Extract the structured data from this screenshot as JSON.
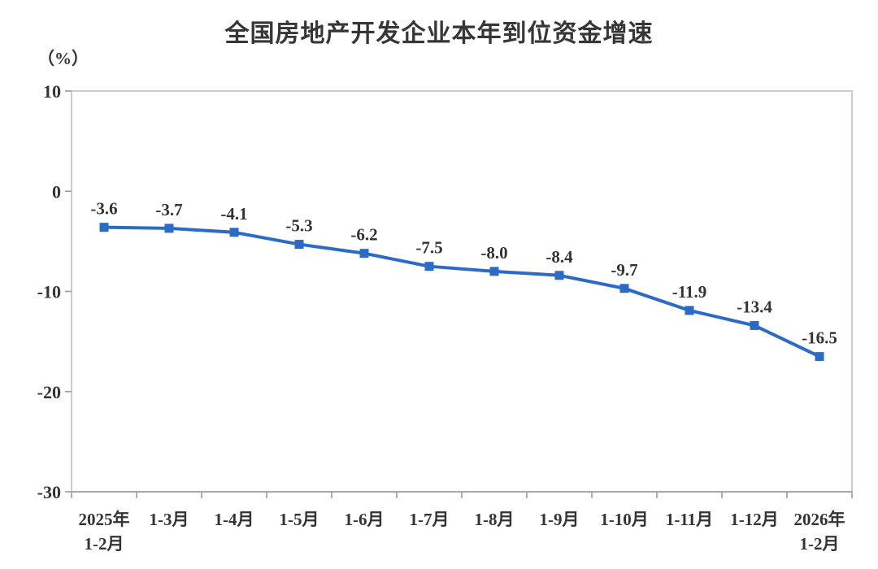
{
  "chart_data": {
    "type": "line",
    "title": "全国房地产开发企业本年到位资金增速",
    "unit_label": "（%）",
    "categories": [
      [
        "2025年",
        "1-2月"
      ],
      [
        "1-3月"
      ],
      [
        "1-4月"
      ],
      [
        "1-5月"
      ],
      [
        "1-6月"
      ],
      [
        "1-7月"
      ],
      [
        "1-8月"
      ],
      [
        "1-9月"
      ],
      [
        "1-10月"
      ],
      [
        "1-11月"
      ],
      [
        "1-12月"
      ],
      [
        "2026年",
        "1-2月"
      ]
    ],
    "values": [
      -3.6,
      -3.7,
      -4.1,
      -5.3,
      -6.2,
      -7.5,
      -8.0,
      -8.4,
      -9.7,
      -11.9,
      -13.4,
      -16.5
    ],
    "data_labels": [
      "-3.6",
      "-3.7",
      "-4.1",
      "-5.3",
      "-6.2",
      "-7.5",
      "-8.0",
      "-8.4",
      "-9.7",
      "-11.9",
      "-13.4",
      "-16.5"
    ],
    "xlabel": "",
    "ylabel": "（%）",
    "ylim": [
      -30,
      10
    ],
    "y_ticks": [
      10,
      0,
      -10,
      -20,
      -30
    ],
    "grid": false,
    "legend": "none",
    "marker": "square",
    "colors": {
      "line": "#2B6BC7",
      "marker": "#2B6BC7",
      "text": "#333333",
      "axis": "#9C9C9C",
      "border": "#CBCBCB"
    }
  }
}
